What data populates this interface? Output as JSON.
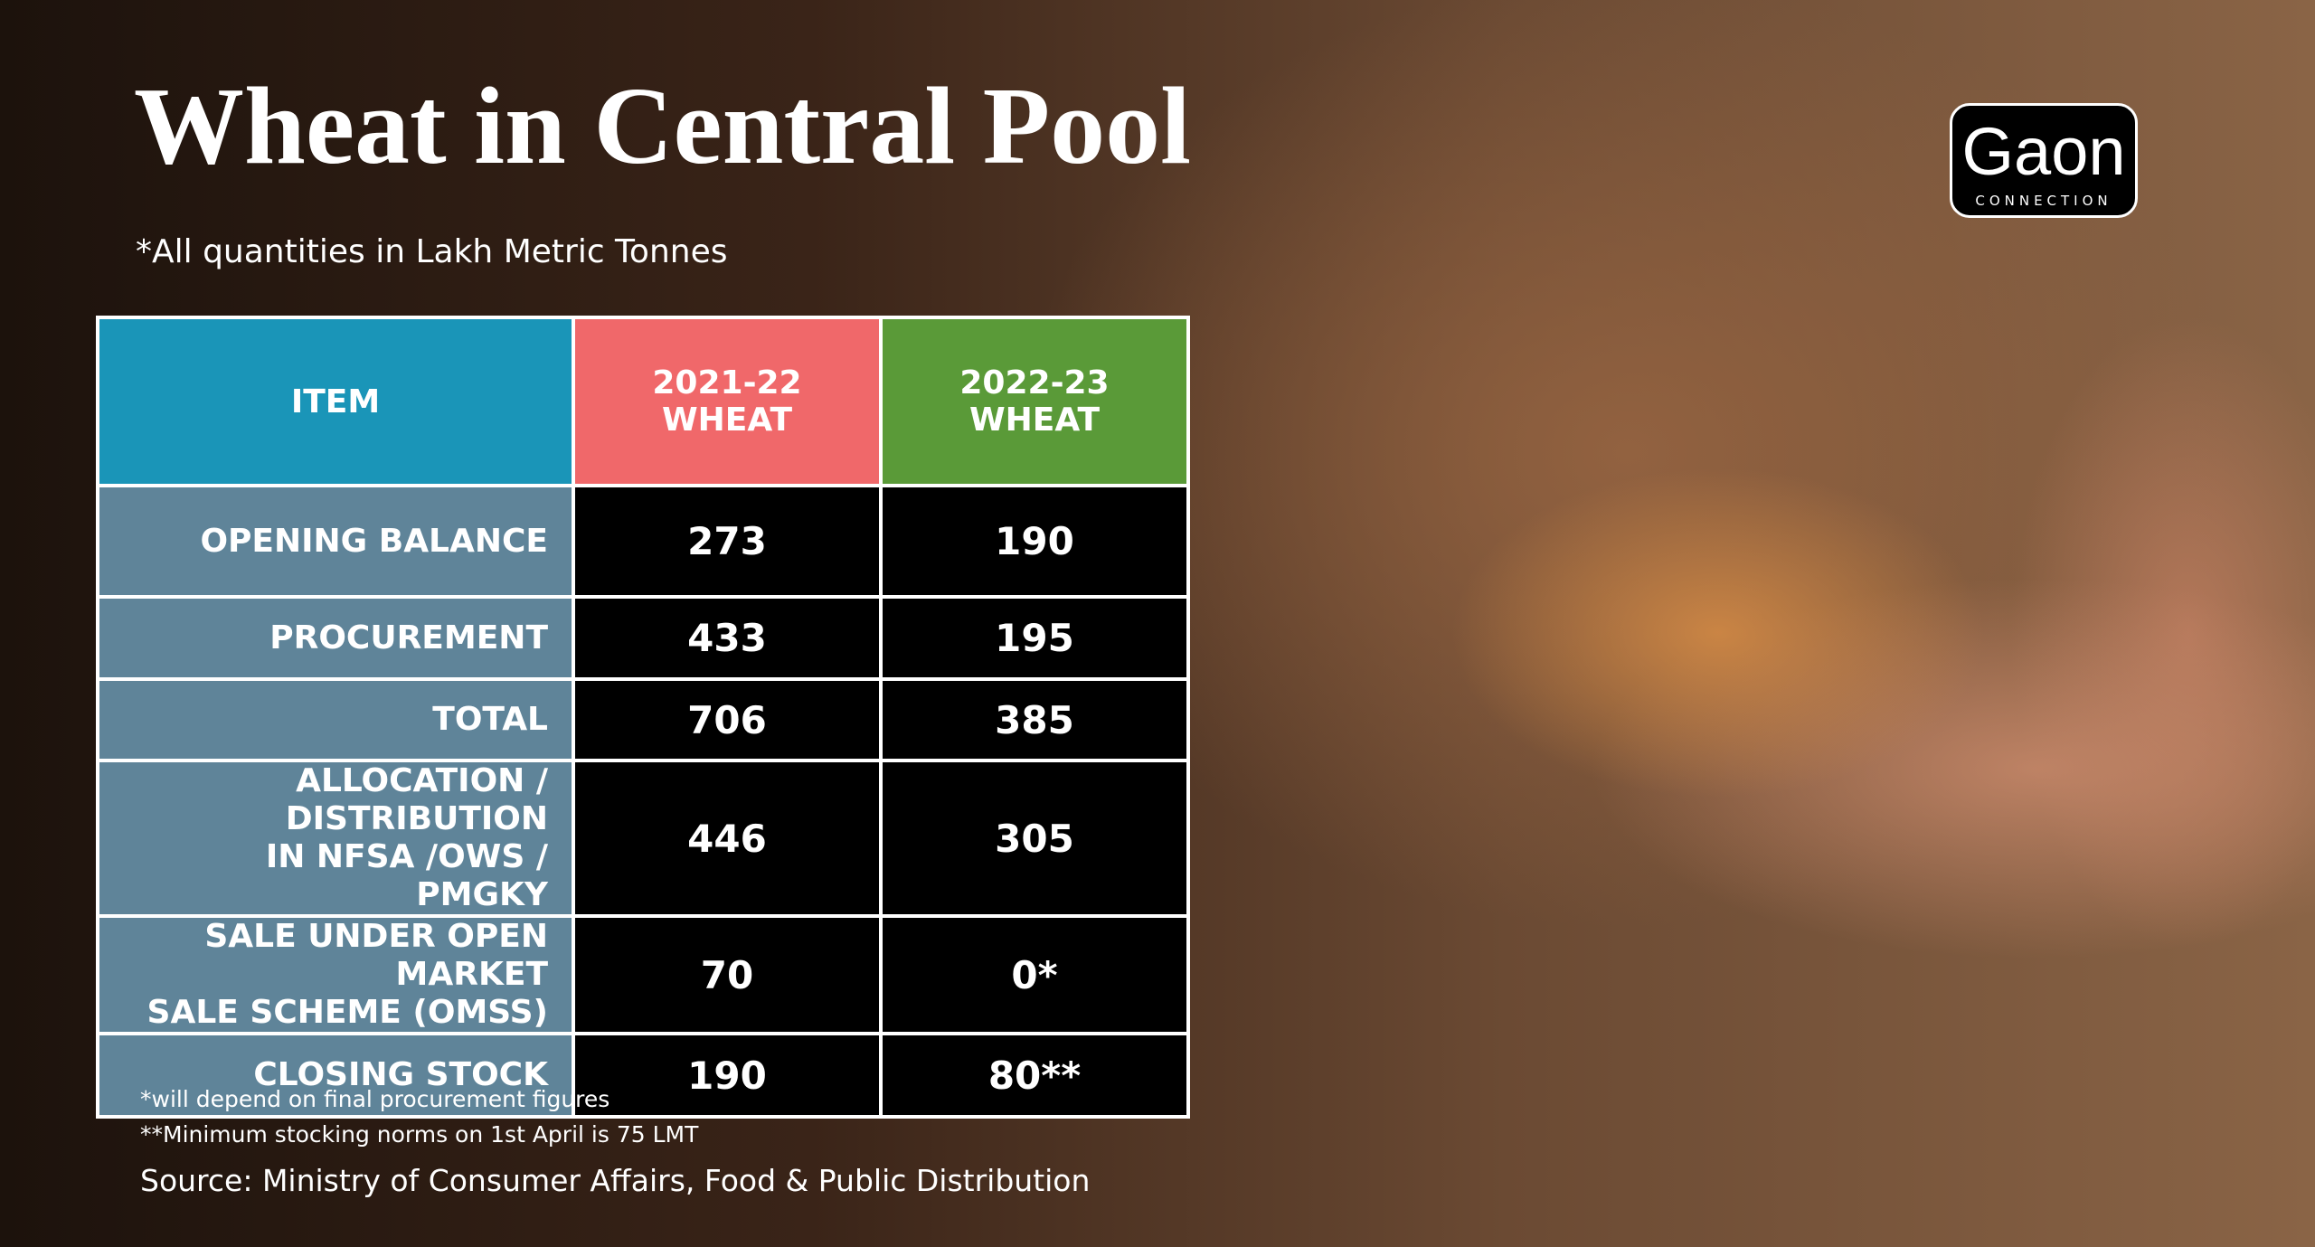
{
  "header": {
    "title": "Wheat in Central Pool",
    "subtitle": "*All quantities in Lakh Metric Tonnes"
  },
  "logo": {
    "name": "Gaon",
    "tagline": "CONNECTION"
  },
  "table": {
    "columns": [
      [
        "ITEM"
      ],
      [
        "2021-22",
        "WHEAT"
      ],
      [
        "2022-23",
        "WHEAT"
      ]
    ],
    "rows": [
      [
        [
          "OPENING BALANCE"
        ],
        "273",
        "190"
      ],
      [
        [
          "PROCUREMENT"
        ],
        "433",
        "195"
      ],
      [
        [
          "TOTAL"
        ],
        "706",
        "385"
      ],
      [
        [
          "ALLOCATION / DISTRIBUTION",
          "IN NFSA /OWS / PMGKY"
        ],
        "446",
        "305"
      ],
      [
        [
          "SALE UNDER OPEN MARKET",
          "SALE SCHEME (OMSS)"
        ],
        "70",
        "0*"
      ],
      [
        [
          "CLOSING STOCK"
        ],
        "190",
        "80**"
      ]
    ]
  },
  "footnotes": [
    "*will depend on final procurement figures",
    "**Minimum stocking norms on 1st April is 75 LMT"
  ],
  "source": "Source: Ministry of Consumer Affairs, Food & Public Distribution"
}
